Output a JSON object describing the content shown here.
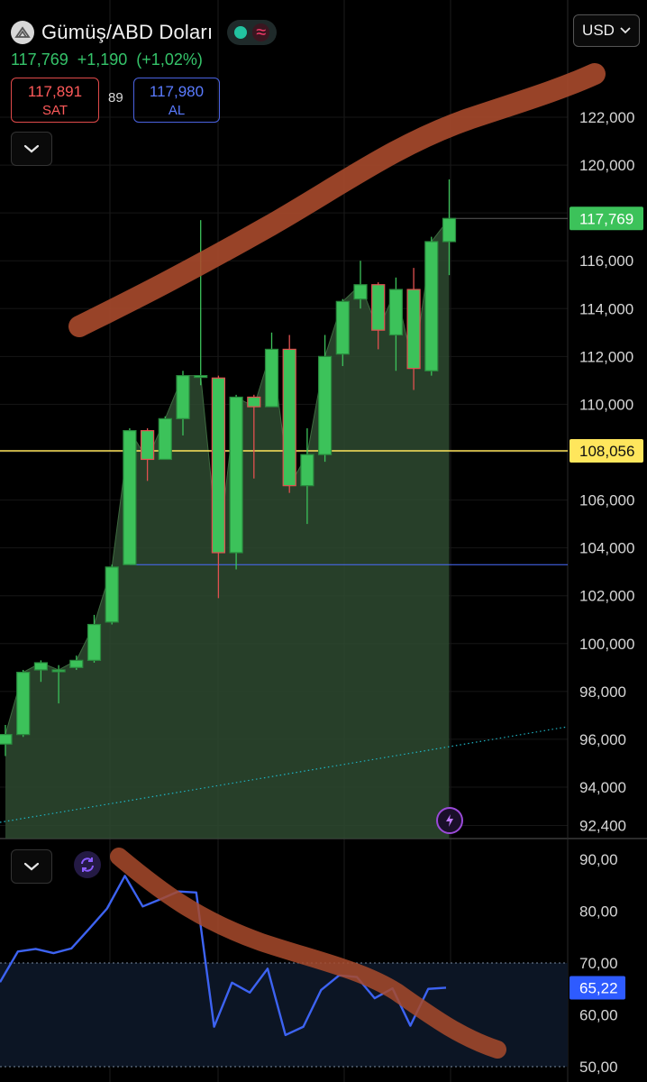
{
  "header": {
    "title": "Gümüş/ABD Doları",
    "last_price": "117,769",
    "change": "+1,190",
    "change_pct": "(+1,02%)",
    "sell_price": "117,891",
    "sell_label": "SAT",
    "spread": "89",
    "buy_price": "117,980",
    "buy_label": "AL",
    "currency": "USD"
  },
  "colors": {
    "up": "#3cc25a",
    "down": "#e05050",
    "area": "#2e4a30",
    "rsi_line": "#3d63f2",
    "annotation": "#a84a2c",
    "accent_yellow": "#ffe65c"
  },
  "icons": {
    "coin": "silver-coin-icon",
    "status": "market-status-icon",
    "collapse": "chevron-down-icon",
    "refresh": "refresh-icon",
    "flash": "lightning-icon",
    "currency_dropdown": "chevron-down-icon"
  },
  "chart_data": [
    {
      "type": "candlestick",
      "title": "",
      "ylim": [
        91000,
        123600
      ],
      "y_ticks": [
        "122,000",
        "120,000",
        "118,000",
        "116,000",
        "114,000",
        "112,000",
        "110,000",
        "108,000",
        "106,000",
        "104,000",
        "102,000",
        "100,000",
        "98,000",
        "96,000",
        "94,000",
        "92,400"
      ],
      "y_tick_values": [
        122000,
        120000,
        118000,
        116000,
        114000,
        112000,
        110000,
        108000,
        106000,
        104000,
        102000,
        100000,
        98000,
        96000,
        94000,
        92400
      ],
      "candles": [
        {
          "o": 95800,
          "h": 96600,
          "l": 95300,
          "c": 96200
        },
        {
          "o": 96200,
          "h": 98900,
          "l": 96100,
          "c": 98800
        },
        {
          "o": 98900,
          "h": 99300,
          "l": 98400,
          "c": 99200
        },
        {
          "o": 98900,
          "h": 99100,
          "l": 97500,
          "c": 98900
        },
        {
          "o": 99000,
          "h": 99500,
          "l": 98900,
          "c": 99300
        },
        {
          "o": 99300,
          "h": 101200,
          "l": 99200,
          "c": 100800
        },
        {
          "o": 100900,
          "h": 103300,
          "l": 100800,
          "c": 103200
        },
        {
          "o": 103300,
          "h": 109000,
          "l": 103300,
          "c": 108900
        },
        {
          "o": 108900,
          "h": 109000,
          "l": 106800,
          "c": 107700
        },
        {
          "o": 107700,
          "h": 109500,
          "l": 107700,
          "c": 109400
        },
        {
          "o": 109400,
          "h": 111400,
          "l": 108700,
          "c": 111200
        },
        {
          "o": 111200,
          "h": 117700,
          "l": 110800,
          "c": 111200
        },
        {
          "o": 111100,
          "h": 111200,
          "l": 101900,
          "c": 103800
        },
        {
          "o": 103800,
          "h": 110400,
          "l": 103100,
          "c": 110300
        },
        {
          "o": 110300,
          "h": 110400,
          "l": 106900,
          "c": 109900
        },
        {
          "o": 109900,
          "h": 113000,
          "l": 109900,
          "c": 112300
        },
        {
          "o": 112300,
          "h": 112900,
          "l": 106300,
          "c": 106600
        },
        {
          "o": 106600,
          "h": 109000,
          "l": 105000,
          "c": 107900
        },
        {
          "o": 107900,
          "h": 112900,
          "l": 107600,
          "c": 112000
        },
        {
          "o": 112100,
          "h": 114400,
          "l": 111600,
          "c": 114300
        },
        {
          "o": 114400,
          "h": 116000,
          "l": 114000,
          "c": 115000
        },
        {
          "o": 115000,
          "h": 115100,
          "l": 112300,
          "c": 113100
        },
        {
          "o": 112900,
          "h": 115300,
          "l": 111400,
          "c": 114800
        },
        {
          "o": 114800,
          "h": 115700,
          "l": 110600,
          "c": 111500
        },
        {
          "o": 111400,
          "h": 117000,
          "l": 111200,
          "c": 116800
        },
        {
          "o": 116800,
          "h": 119400,
          "l": 115400,
          "c": 117769
        }
      ],
      "price_label": "117,769",
      "level_label": "108,056",
      "level_value": 108056,
      "support_value": 103300,
      "area_start_index": 0,
      "area_end_index": 25
    },
    {
      "type": "line",
      "title": "",
      "ylim": [
        48,
        92
      ],
      "y_ticks": [
        "90,00",
        "80,00",
        "70,00",
        "60,00",
        "50,00"
      ],
      "y_tick_values": [
        90,
        80,
        70,
        60,
        50
      ],
      "band": [
        50,
        70
      ],
      "values": [
        66.3,
        72.2,
        72.7,
        71.9,
        72.8,
        76.6,
        80.5,
        86.8,
        80.9,
        82.3,
        83.8,
        83.6,
        57.7,
        66.2,
        64.3,
        68.9,
        56.1,
        57.7,
        64.8,
        67.6,
        67.3,
        63.2,
        65.1,
        57.9,
        65.0,
        65.22
      ],
      "value_label": "65,22"
    }
  ]
}
